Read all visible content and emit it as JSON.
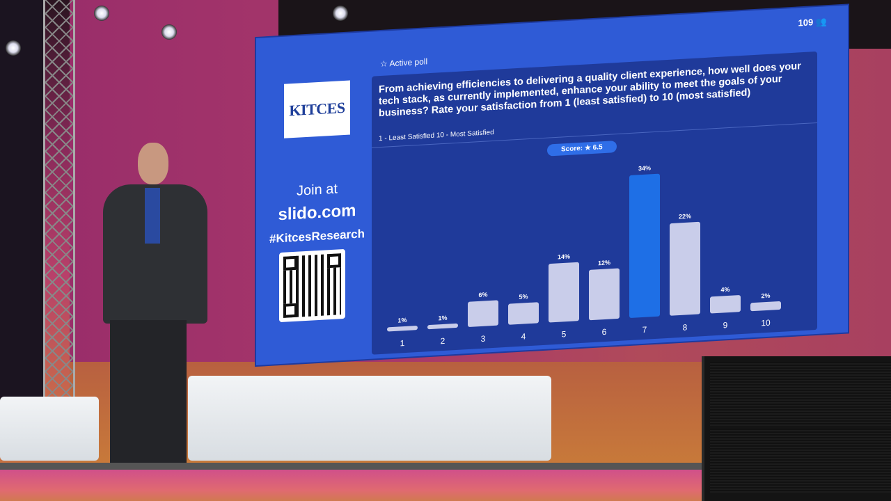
{
  "screen": {
    "brand_logo_text": "KITCES",
    "join_label": "Join at",
    "join_url": "slido.com",
    "hashtag": "#KitcesResearch",
    "active_poll_label": "Active poll",
    "participant_count": "109",
    "question": "From achieving efficiencies to delivering a quality client experience, how well does your tech stack, as currently implemented, enhance your ability to meet the goals of your business? Rate your satisfaction from 1 (least satisfied) to 10 (most satisfied)",
    "scale_note": "1 - Least Satisfied  10 - Most Satisfied",
    "score_label": "Score: ★ 6.5"
  },
  "colors": {
    "screen_bg": "#2f5bd6",
    "panel_bg": "#1f3a9a",
    "bar": "#c9cdea",
    "highlight_bar": "#1e6fe6"
  },
  "chart_data": {
    "type": "bar",
    "categories": [
      "1",
      "2",
      "3",
      "4",
      "5",
      "6",
      "7",
      "8",
      "9",
      "10"
    ],
    "values": [
      1,
      1,
      6,
      5,
      14,
      12,
      34,
      22,
      4,
      2
    ],
    "data_labels": [
      "1%",
      "1%",
      "6%",
      "5%",
      "14%",
      "12%",
      "34%",
      "22%",
      "4%",
      "2%"
    ],
    "highlight_category": "7",
    "unit": "%",
    "grid": false
  }
}
